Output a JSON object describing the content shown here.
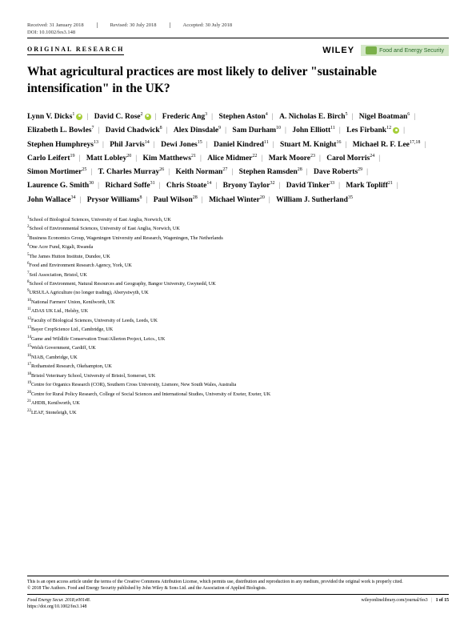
{
  "meta": {
    "received": "Received: 31 January 2018",
    "revised": "Revised: 30 July 2018",
    "accepted": "Accepted: 30 July 2018",
    "doi": "DOI: 10.1002/fes3.148"
  },
  "header": {
    "article_type": "ORIGINAL RESEARCH",
    "publisher": "WILEY",
    "journal_name": "Food and Energy Security"
  },
  "title": "What agricultural practices are most likely to deliver \"sustainable intensification\" in the UK?",
  "authors": [
    {
      "name": "Lynn V. Dicks",
      "aff": "1",
      "orcid": true
    },
    {
      "name": "David C. Rose",
      "aff": "2",
      "orcid": true
    },
    {
      "name": "Frederic Ang",
      "aff": "3"
    },
    {
      "name": "Stephen Aston",
      "aff": "4"
    },
    {
      "name": "A. Nicholas E. Birch",
      "aff": "5"
    },
    {
      "name": "Nigel Boatman",
      "aff": "6"
    },
    {
      "name": "Elizabeth L. Bowles",
      "aff": "7"
    },
    {
      "name": "David Chadwick",
      "aff": "8"
    },
    {
      "name": "Alex Dinsdale",
      "aff": "9"
    },
    {
      "name": "Sam Durham",
      "aff": "10"
    },
    {
      "name": "John Elliott",
      "aff": "11"
    },
    {
      "name": "Les Firbank",
      "aff": "12",
      "orcid": true
    },
    {
      "name": "Stephen Humphreys",
      "aff": "13"
    },
    {
      "name": "Phil Jarvis",
      "aff": "14"
    },
    {
      "name": "Dewi Jones",
      "aff": "15"
    },
    {
      "name": "Daniel Kindred",
      "aff": "11"
    },
    {
      "name": "Stuart M. Knight",
      "aff": "16"
    },
    {
      "name": "Michael R. F. Lee",
      "aff": "17,18"
    },
    {
      "name": "Carlo Leifert",
      "aff": "19"
    },
    {
      "name": "Matt Lobley",
      "aff": "20"
    },
    {
      "name": "Kim Matthews",
      "aff": "21"
    },
    {
      "name": "Alice Midmer",
      "aff": "22"
    },
    {
      "name": "Mark Moore",
      "aff": "23"
    },
    {
      "name": "Carol Morris",
      "aff": "24"
    },
    {
      "name": "Simon Mortimer",
      "aff": "25"
    },
    {
      "name": "T. Charles Murray",
      "aff": "26"
    },
    {
      "name": "Keith Norman",
      "aff": "27"
    },
    {
      "name": "Stephen Ramsden",
      "aff": "28"
    },
    {
      "name": "Dave Roberts",
      "aff": "29"
    },
    {
      "name": "Laurence G. Smith",
      "aff": "30"
    },
    {
      "name": "Richard Soffe",
      "aff": "31"
    },
    {
      "name": "Chris Stoate",
      "aff": "14"
    },
    {
      "name": "Bryony Taylor",
      "aff": "32"
    },
    {
      "name": "David Tinker",
      "aff": "33"
    },
    {
      "name": "Mark Topliff",
      "aff": "21"
    },
    {
      "name": "John Wallace",
      "aff": "34"
    },
    {
      "name": "Prysor Williams",
      "aff": "8"
    },
    {
      "name": "Paul Wilson",
      "aff": "28"
    },
    {
      "name": "Michael Winter",
      "aff": "20"
    },
    {
      "name": "William J. Sutherland",
      "aff": "35"
    }
  ],
  "affiliations": [
    {
      "n": "1",
      "text": "School of Biological Sciences, University of East Anglia, Norwich, UK"
    },
    {
      "n": "2",
      "text": "School of Environmental Sciences, University of East Anglia, Norwich, UK"
    },
    {
      "n": "3",
      "text": "Business Economics Group, Wageningen University and Research, Wageningen, The Netherlands"
    },
    {
      "n": "4",
      "text": "One Acre Fund, Kigali, Rwanda"
    },
    {
      "n": "5",
      "text": "The James Hutton Institute, Dundee, UK"
    },
    {
      "n": "6",
      "text": "Food and Environment Research Agency, York, UK"
    },
    {
      "n": "7",
      "text": "Soil Association, Bristol, UK"
    },
    {
      "n": "8",
      "text": "School of Environment, Natural Resources and Geography, Bangor University, Gwynedd, UK"
    },
    {
      "n": "9",
      "text": "URSULA Agriculture (no longer trading), Aberystwyth, UK"
    },
    {
      "n": "10",
      "text": "National Farmers' Union, Kenilworth, UK"
    },
    {
      "n": "11",
      "text": "ADAS UK Ltd., Helsby, UK"
    },
    {
      "n": "12",
      "text": "Faculty of Biological Sciences, University of Leeds, Leeds, UK"
    },
    {
      "n": "13",
      "text": "Bayer CropScience Ltd., Cambridge, UK"
    },
    {
      "n": "14",
      "text": "Game and Wildlife Conservation Trust/Allerton Project, Leics., UK"
    },
    {
      "n": "15",
      "text": "Welsh Government, Cardiff, UK"
    },
    {
      "n": "16",
      "text": "NIAB, Cambridge, UK"
    },
    {
      "n": "17",
      "text": "Rothamsted Research, Okehampton, UK"
    },
    {
      "n": "18",
      "text": "Bristol Veterinary School, University of Bristol, Somerset, UK"
    },
    {
      "n": "19",
      "text": "Centre for Organics Research (COR), Southern Cross University, Lismore, New South Wales, Australia"
    },
    {
      "n": "20",
      "text": "Centre for Rural Policy Research, College of Social Sciences and International Studies, University of Exeter, Exeter, UK"
    },
    {
      "n": "21",
      "text": "AHDB, Kenilworth, UK"
    },
    {
      "n": "22",
      "text": "LEAF, Stoneleigh, UK"
    }
  ],
  "footer": {
    "license": "This is an open access article under the terms of the Creative Commons Attribution License, which permits use, distribution and reproduction in any medium, provided the original work is properly cited.",
    "copyright": "© 2018 The Authors. Food and Energy Security published by John Wiley & Sons Ltd. and the Association of Applied Biologists.",
    "citation": "Food Energy Secur. 2018;e00148.",
    "doi_url": "https://doi.org/10.1002/fes3.148",
    "journal_url": "wileyonlinelibrary.com/journal/fes3",
    "page": "1 of 15"
  }
}
